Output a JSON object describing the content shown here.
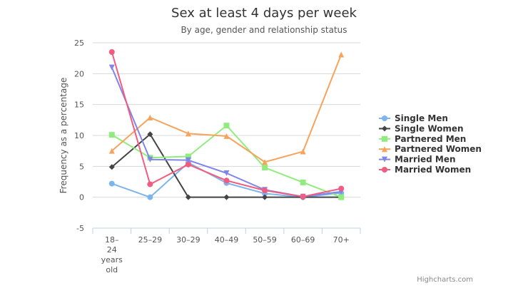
{
  "chart_data": {
    "type": "line",
    "title": "Sex at least 4 days per week",
    "subtitle": "By age, gender and relationship status",
    "xlabel": "",
    "ylabel": "Frequency as a percentage",
    "categories": [
      "18–24 years old",
      "25–29",
      "30–29",
      "40–49",
      "50–59",
      "60–69",
      "70+"
    ],
    "ylim": [
      -5,
      25
    ],
    "yticks": [
      -5,
      0,
      5,
      10,
      15,
      20,
      25
    ],
    "grid": true,
    "legend_position": "right",
    "series": [
      {
        "name": "Single Men",
        "color": "#7cb5ec",
        "marker": "circle",
        "values": [
          2.2,
          0.0,
          5.6,
          2.3,
          0.6,
          0.0,
          0.7
        ]
      },
      {
        "name": "Single Women",
        "color": "#434348",
        "marker": "diamond",
        "values": [
          4.9,
          10.2,
          0.0,
          0.0,
          0.0,
          0.0,
          0.0
        ]
      },
      {
        "name": "Partnered Men",
        "color": "#90ed7d",
        "marker": "square",
        "values": [
          10.1,
          6.4,
          6.6,
          11.6,
          4.8,
          2.4,
          0.0
        ]
      },
      {
        "name": "Partnered Women",
        "color": "#f7a35c",
        "marker": "triangle",
        "values": [
          7.5,
          12.9,
          10.3,
          9.9,
          5.7,
          7.4,
          23.1
        ]
      },
      {
        "name": "Married Men",
        "color": "#8085e9",
        "marker": "triangle-down",
        "values": [
          21.0,
          6.1,
          6.0,
          3.9,
          1.2,
          0.1,
          0.9
        ]
      },
      {
        "name": "Married Women",
        "color": "#f15c80",
        "marker": "circle",
        "values": [
          23.5,
          2.1,
          5.3,
          2.7,
          1.1,
          0.1,
          1.4
        ]
      }
    ],
    "credit": "Highcharts.com"
  }
}
